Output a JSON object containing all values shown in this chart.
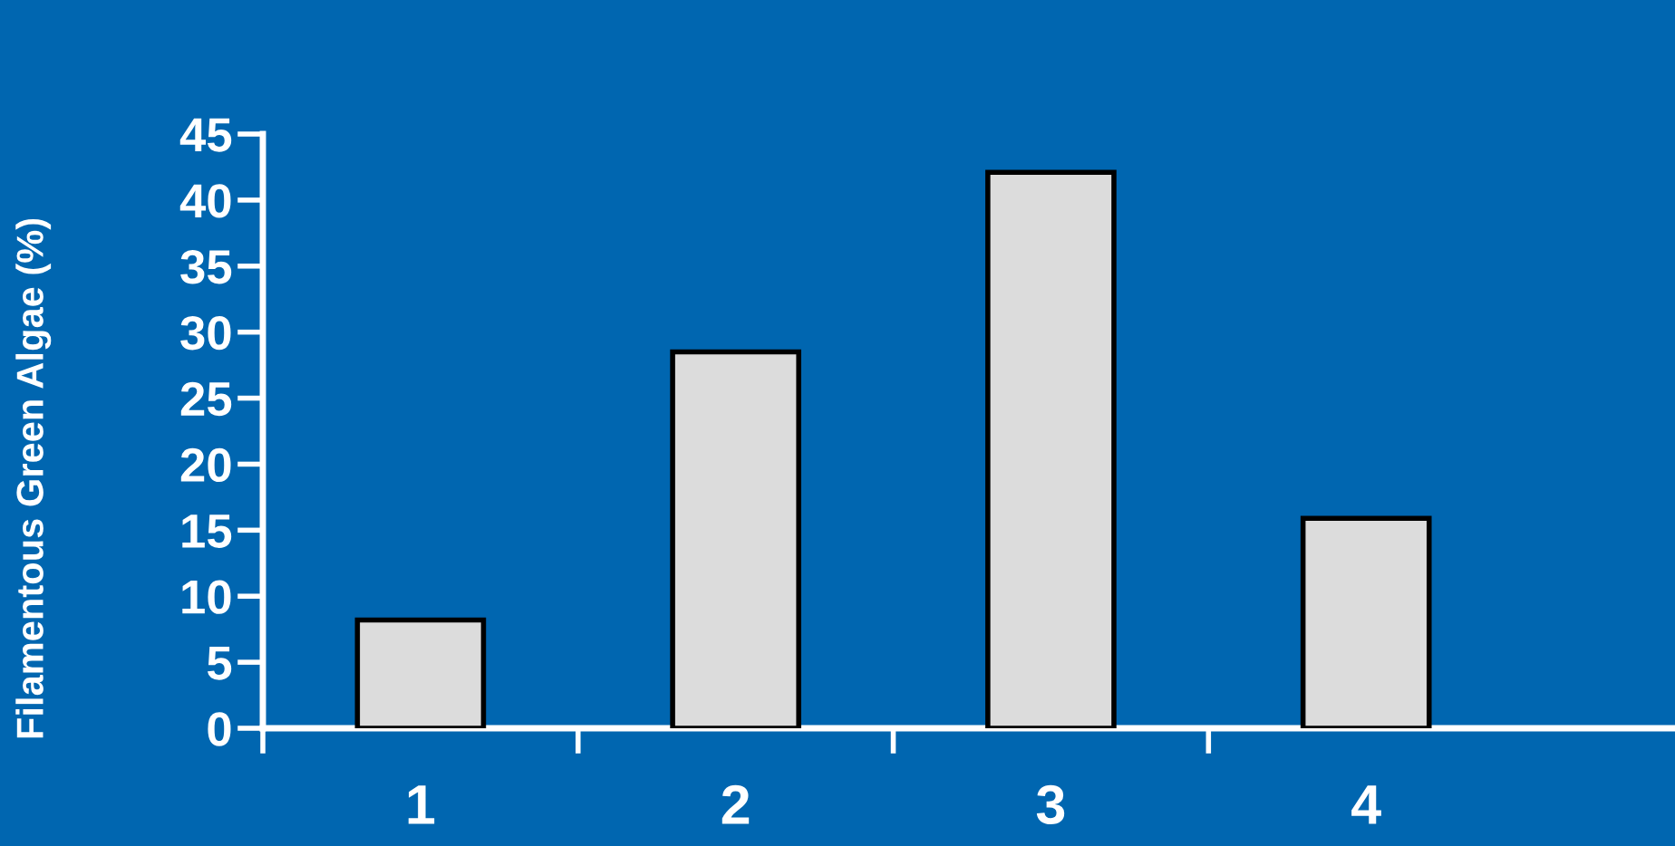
{
  "chart_data": {
    "type": "bar",
    "ylabel": "Filamentous Green Algae (%)",
    "categories": [
      "1",
      "2",
      "3",
      "4"
    ],
    "values": [
      8.2,
      28.5,
      42.1,
      15.9
    ],
    "color": "#dcdcdc",
    "ylim": [
      0,
      45
    ],
    "yticks": [
      0,
      5,
      10,
      15,
      20,
      25,
      30,
      35,
      40,
      45
    ],
    "grid": false
  }
}
